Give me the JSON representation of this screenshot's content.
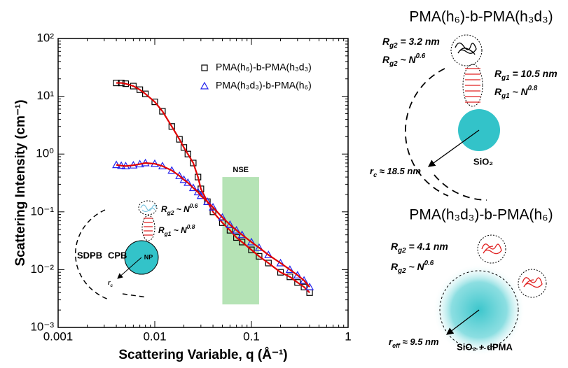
{
  "chart_data": {
    "type": "scatter",
    "x_label": "Scattering Variable, q (Å⁻¹)",
    "y_label": "Scattering Intensity (cm⁻¹)",
    "xscale": "log",
    "yscale": "log",
    "xlim": [
      0.001,
      1
    ],
    "ylim": [
      0.001,
      100
    ],
    "xticks": [
      0.001,
      0.01,
      0.1,
      1
    ],
    "yticks": [
      {
        "value": 0.001,
        "label": "10⁻³"
      },
      {
        "value": 0.01,
        "label": "10⁻²"
      },
      {
        "value": 0.1,
        "label": "10⁻¹"
      },
      {
        "value": 1,
        "label": "10⁰"
      },
      {
        "value": 10,
        "label": "10¹"
      },
      {
        "value": 100,
        "label": "10²"
      }
    ],
    "legend": "upper right",
    "fit_color": "#e00000",
    "series": [
      {
        "name": "PMA(h₆)-b-PMA(h₃d₃)",
        "color": "#000000",
        "marker": "square",
        "x": [
          0.004,
          0.0045,
          0.005,
          0.006,
          0.007,
          0.008,
          0.01,
          0.012,
          0.015,
          0.018,
          0.02,
          0.022,
          0.025,
          0.028,
          0.03,
          0.035,
          0.04,
          0.05,
          0.06,
          0.07,
          0.08,
          0.1,
          0.12,
          0.15,
          0.2,
          0.25,
          0.3,
          0.35,
          0.4
        ],
        "values": [
          17,
          17,
          16.5,
          15,
          13,
          11,
          8,
          5.5,
          3,
          1.8,
          1.3,
          1.0,
          0.7,
          0.4,
          0.25,
          0.15,
          0.1,
          0.065,
          0.048,
          0.036,
          0.03,
          0.022,
          0.017,
          0.013,
          0.009,
          0.0075,
          0.006,
          0.005,
          0.004
        ]
      },
      {
        "name": "PMA(h₃d₃)-b-PMA(h₆)",
        "color": "#2222ee",
        "marker": "triangle",
        "x": [
          0.004,
          0.0045,
          0.005,
          0.006,
          0.007,
          0.008,
          0.01,
          0.012,
          0.015,
          0.018,
          0.02,
          0.022,
          0.025,
          0.028,
          0.03,
          0.035,
          0.04,
          0.05,
          0.06,
          0.07,
          0.08,
          0.1,
          0.12,
          0.15,
          0.2,
          0.25,
          0.3,
          0.35,
          0.4
        ],
        "values": [
          0.65,
          0.63,
          0.62,
          0.64,
          0.67,
          0.7,
          0.68,
          0.62,
          0.52,
          0.42,
          0.36,
          0.32,
          0.26,
          0.22,
          0.19,
          0.15,
          0.12,
          0.08,
          0.06,
          0.048,
          0.04,
          0.03,
          0.024,
          0.018,
          0.013,
          0.01,
          0.008,
          0.0065,
          0.005
        ]
      }
    ],
    "annotations": [
      {
        "text": "NSE",
        "x": [
          0.05,
          0.12
        ],
        "y": [
          0.0025,
          0.4
        ],
        "color": "#b5e3b5"
      }
    ]
  },
  "inset": {
    "rg2_scaling": {
      "main": "R",
      "sub": "g2",
      "rest": " ~ N",
      "sup": "0.6"
    },
    "rg1_scaling": {
      "main": "R",
      "sub": "g1",
      "rest": " ~ N",
      "sup": "0.8"
    },
    "sdpb": "SDPB",
    "cpb": "CPB",
    "np": "NP",
    "rc": {
      "main": "r",
      "sub": "c"
    }
  },
  "diagrams": [
    {
      "title": "PMA(h₆)-b-PMA(h₃d₃)",
      "rg2_value": {
        "main": "R",
        "sub": "g2",
        "rest": " = 3.2 nm"
      },
      "rg2_scaling": {
        "main": "R",
        "sub": "g2",
        "rest": " ~ N",
        "sup": "0.6"
      },
      "rg1_value": {
        "main": "R",
        "sub": "g1",
        "rest": " = 10.5 nm"
      },
      "rg1_scaling": {
        "main": "R",
        "sub": "g1",
        "rest": " ~ N",
        "sup": "0.8"
      },
      "radius": {
        "main": "r",
        "sub": "c",
        "rest": " ≈ 18.5 nm"
      },
      "core": "SiO₂"
    },
    {
      "title": "PMA(h₃d₃)-b-PMA(h₆)",
      "rg2_value": {
        "main": "R",
        "sub": "g2",
        "rest": " = 4.1 nm"
      },
      "rg2_scaling": {
        "main": "R",
        "sub": "g2",
        "rest": " ~ N",
        "sup": "0.6"
      },
      "radius": {
        "main": "r",
        "sub": "eff",
        "rest": " ≈ 9.5 nm"
      },
      "core": "SiO₂ + dPMA"
    }
  ]
}
